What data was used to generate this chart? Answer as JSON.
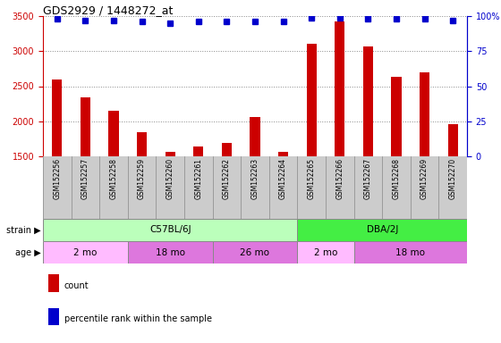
{
  "title": "GDS2929 / 1448272_at",
  "samples": [
    "GSM152256",
    "GSM152257",
    "GSM152258",
    "GSM152259",
    "GSM152260",
    "GSM152261",
    "GSM152262",
    "GSM152263",
    "GSM152264",
    "GSM152265",
    "GSM152266",
    "GSM152267",
    "GSM152268",
    "GSM152269",
    "GSM152270"
  ],
  "counts": [
    2590,
    2340,
    2155,
    1840,
    1570,
    1645,
    1690,
    2060,
    1570,
    3110,
    3420,
    3070,
    2640,
    2700,
    1960
  ],
  "percentile_ranks": [
    98,
    97,
    97,
    96,
    95,
    96,
    96,
    96,
    96,
    99,
    99,
    98,
    98,
    98,
    97
  ],
  "ylim_left": [
    1500,
    3500
  ],
  "ylim_right": [
    0,
    100
  ],
  "yticks_left": [
    1500,
    2000,
    2500,
    3000,
    3500
  ],
  "yticks_right": [
    0,
    25,
    50,
    75,
    100
  ],
  "bar_color": "#cc0000",
  "dot_color": "#0000cc",
  "strain_data": [
    {
      "label": "C57BL/6J",
      "start": 0,
      "end": 9,
      "color": "#bbffbb"
    },
    {
      "label": "DBA/2J",
      "start": 9,
      "end": 15,
      "color": "#44ee44"
    }
  ],
  "age_data": [
    {
      "label": "2 mo",
      "start": 0,
      "end": 3,
      "color": "#ffbbff"
    },
    {
      "label": "18 mo",
      "start": 3,
      "end": 6,
      "color": "#dd77dd"
    },
    {
      "label": "26 mo",
      "start": 6,
      "end": 9,
      "color": "#dd77dd"
    },
    {
      "label": "2 mo",
      "start": 9,
      "end": 11,
      "color": "#ffbbff"
    },
    {
      "label": "18 mo",
      "start": 11,
      "end": 15,
      "color": "#dd77dd"
    }
  ],
  "tick_label_color_left": "#cc0000",
  "tick_label_color_right": "#0000cc",
  "xtick_bg_color": "#cccccc",
  "legend_items": [
    {
      "color": "#cc0000",
      "label": "count"
    },
    {
      "color": "#0000cc",
      "label": "percentile rank within the sample"
    }
  ]
}
